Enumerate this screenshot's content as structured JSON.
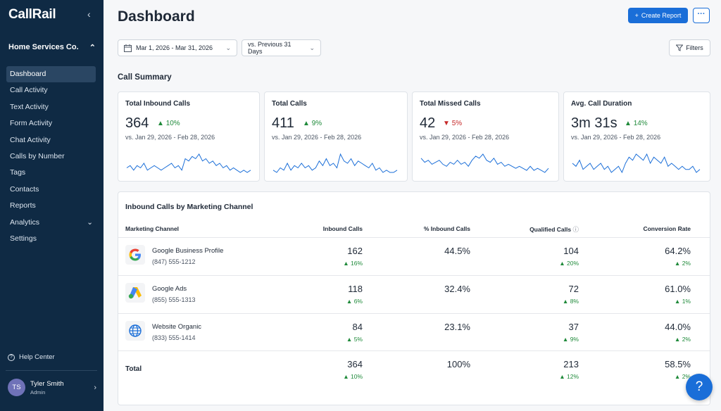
{
  "brand": {
    "logo": "CallRail",
    "accent": "#1a6ed8",
    "sidebar_bg": "#0f2a44"
  },
  "sidebar": {
    "account": "Home Services Co.",
    "items": [
      {
        "label": "Dashboard",
        "active": true
      },
      {
        "label": "Call Activity"
      },
      {
        "label": "Text Activity"
      },
      {
        "label": "Form Activity"
      },
      {
        "label": "Chat Activity"
      },
      {
        "label": "Calls by Number"
      },
      {
        "label": "Tags"
      },
      {
        "label": "Contacts"
      },
      {
        "label": "Reports"
      },
      {
        "label": "Analytics",
        "expandable": true
      },
      {
        "label": "Settings"
      }
    ],
    "help": "Help Center",
    "user": {
      "initials": "TS",
      "name": "Tyler Smith",
      "role": "Admin"
    }
  },
  "header": {
    "title": "Dashboard",
    "create_label": "Create Report",
    "more_label": "···",
    "date_range": "Mar 1, 2026 - Mar 31, 2026",
    "compare": "vs. Previous 31 Days",
    "filters_label": "Filters"
  },
  "summary": {
    "title": "Call Summary",
    "cards": [
      {
        "label": "Total Inbound Calls",
        "value": "364",
        "delta": "10%",
        "direction": "up",
        "compare": "vs. Jan 29, 2026 - Feb 28, 2026",
        "spark": [
          5,
          6,
          4,
          6,
          5,
          7,
          4,
          5,
          6,
          5,
          4,
          5,
          6,
          7,
          5,
          6,
          4,
          9,
          8,
          10,
          9,
          11,
          8,
          9,
          7,
          8,
          6,
          7,
          5,
          6,
          4,
          5,
          4,
          3,
          4,
          3,
          4
        ]
      },
      {
        "label": "Total Calls",
        "value": "411",
        "delta": "9%",
        "direction": "up",
        "compare": "vs. Jan 29, 2026 - Feb 28, 2026",
        "spark": [
          4,
          3,
          5,
          4,
          7,
          4,
          6,
          5,
          7,
          5,
          6,
          4,
          5,
          8,
          6,
          9,
          6,
          7,
          5,
          11,
          8,
          7,
          9,
          6,
          8,
          7,
          6,
          5,
          7,
          4,
          5,
          3,
          4,
          3,
          3,
          4
        ]
      },
      {
        "label": "Total Missed Calls",
        "value": "42",
        "delta": "5%",
        "direction": "down",
        "compare": "vs. Jan 29, 2026 - Feb 28, 2026",
        "spark": [
          8,
          6,
          7,
          5,
          6,
          7,
          5,
          4,
          6,
          5,
          7,
          5,
          6,
          4,
          7,
          9,
          8,
          10,
          7,
          6,
          8,
          5,
          6,
          4,
          5,
          4,
          3,
          4,
          3,
          2,
          4,
          2,
          3,
          2,
          1,
          3
        ]
      },
      {
        "label": "Avg. Call Duration",
        "value": "3m 31s",
        "delta": "14%",
        "direction": "up",
        "compare": "vs. Jan 29, 2026 - Feb 28, 2026",
        "spark": [
          6,
          5,
          7,
          4,
          5,
          6,
          4,
          5,
          6,
          4,
          5,
          3,
          4,
          5,
          3,
          6,
          8,
          7,
          9,
          8,
          7,
          9,
          6,
          8,
          7,
          6,
          8,
          5,
          6,
          5,
          4,
          5,
          4,
          4,
          5,
          3,
          4
        ]
      }
    ]
  },
  "channels": {
    "title": "Inbound Calls by Marketing Channel",
    "columns": [
      "Marketing Channel",
      "Inbound Calls",
      "% Inbound Calls",
      "Qualified Calls",
      "Conversion Rate"
    ],
    "rows": [
      {
        "name": "Google Business Profile",
        "phone": "(847) 555-1212",
        "icon": "google-icon",
        "inbound": "162",
        "inbound_delta": "16%",
        "pct": "44.5%",
        "qualified": "104",
        "qualified_delta": "20%",
        "conversion": "64.2%",
        "conversion_delta": "2%"
      },
      {
        "name": "Google Ads",
        "phone": "(855) 555-1313",
        "icon": "google-ads-icon",
        "inbound": "118",
        "inbound_delta": "6%",
        "pct": "32.4%",
        "qualified": "72",
        "qualified_delta": "8%",
        "conversion": "61.0%",
        "conversion_delta": "1%"
      },
      {
        "name": "Website Organic",
        "phone": "(833) 555-1414",
        "icon": "globe-icon",
        "inbound": "84",
        "inbound_delta": "5%",
        "pct": "23.1%",
        "qualified": "37",
        "qualified_delta": "9%",
        "conversion": "44.0%",
        "conversion_delta": "2%"
      }
    ],
    "total": {
      "label": "Total",
      "inbound": "364",
      "inbound_delta": "10%",
      "pct": "100%",
      "qualified": "213",
      "qualified_delta": "12%",
      "conversion": "58.5%",
      "conversion_delta": "2%"
    }
  },
  "fab_label": "?"
}
